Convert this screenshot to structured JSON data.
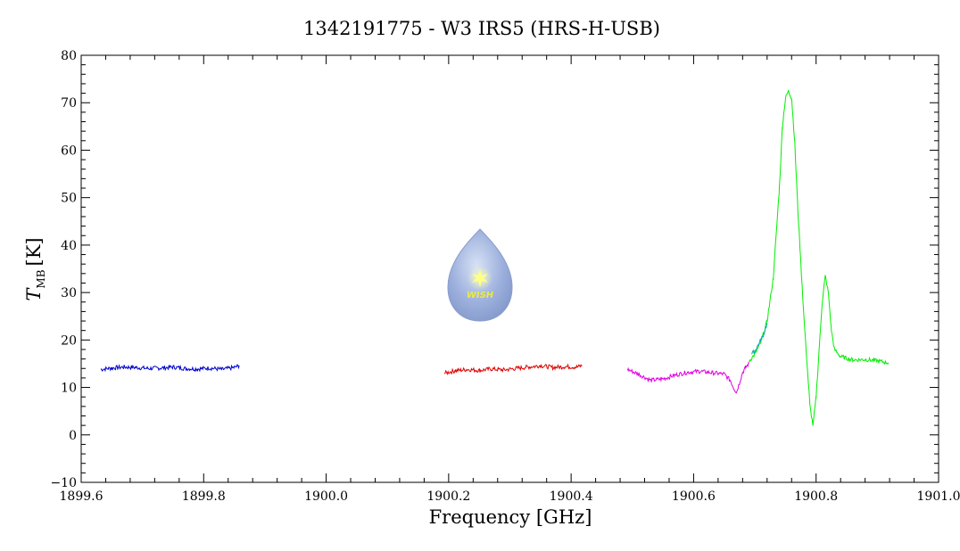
{
  "chart_data": {
    "type": "line",
    "title": "1342191775 - W3 IRS5 (HRS-H-USB)",
    "xlabel": "Frequency [GHz]",
    "ylabel_main": "T",
    "ylabel_sub": "MB",
    "ylabel_unit": "[K]",
    "xlim": [
      1899.6,
      1901.0
    ],
    "ylim": [
      -10,
      80
    ],
    "x_ticks": [
      "1899.6",
      "1899.8",
      "1900.0",
      "1900.2",
      "1900.4",
      "1900.6",
      "1900.8",
      "1901.0"
    ],
    "y_ticks": [
      "−10",
      "0",
      "10",
      "20",
      "30",
      "40",
      "50",
      "60",
      "70",
      "80"
    ],
    "grid": false,
    "logo_text": "WISH",
    "series": [
      {
        "color": "#0000cc",
        "x": [
          1899.632,
          1899.65,
          1899.67,
          1899.69,
          1899.71,
          1899.73,
          1899.75,
          1899.77,
          1899.79,
          1899.81,
          1899.83,
          1899.85,
          1899.858
        ],
        "y": [
          13.8,
          14.1,
          14.3,
          14.2,
          14.0,
          14.1,
          14.3,
          14.0,
          13.9,
          14.1,
          13.8,
          14.2,
          14.6
        ]
      },
      {
        "color": "#dd0000",
        "x": [
          1900.193,
          1900.21,
          1900.23,
          1900.25,
          1900.27,
          1900.29,
          1900.31,
          1900.33,
          1900.35,
          1900.37,
          1900.39,
          1900.41,
          1900.418
        ],
        "y": [
          13.0,
          13.5,
          13.8,
          13.6,
          13.9,
          13.7,
          14.0,
          14.3,
          14.6,
          14.2,
          14.4,
          14.3,
          14.6
        ]
      },
      {
        "color": "#e000e0",
        "x": [
          1900.492,
          1900.51,
          1900.53,
          1900.55,
          1900.57,
          1900.59,
          1900.61,
          1900.63,
          1900.65,
          1900.66,
          1900.665,
          1900.67,
          1900.675,
          1900.68,
          1900.685,
          1900.69
        ],
        "y": [
          13.8,
          12.8,
          11.5,
          11.8,
          12.6,
          13.2,
          13.4,
          13.1,
          12.8,
          11.5,
          10.0,
          9.0,
          11.0,
          13.2,
          14.2,
          15.0
        ]
      },
      {
        "color": "#00ee00",
        "x": [
          1900.69,
          1900.7,
          1900.71,
          1900.72,
          1900.73,
          1900.74,
          1900.745,
          1900.75,
          1900.755,
          1900.76,
          1900.765,
          1900.77,
          1900.78,
          1900.79,
          1900.795,
          1900.8,
          1900.805,
          1900.81,
          1900.815,
          1900.82,
          1900.825,
          1900.83,
          1900.84,
          1900.86,
          1900.88,
          1900.9,
          1900.918
        ],
        "y": [
          15.5,
          17.0,
          19.5,
          24.0,
          33.0,
          52.0,
          65.0,
          71.0,
          72.5,
          71.0,
          62.0,
          48.0,
          25.0,
          6.0,
          2.0,
          8.0,
          18.0,
          28.0,
          33.5,
          30.0,
          22.0,
          18.0,
          16.5,
          15.8,
          15.9,
          15.6,
          15.2
        ]
      },
      {
        "color": "#00aaaa",
        "x": [
          1900.695,
          1900.7,
          1900.705,
          1900.71,
          1900.715,
          1900.72
        ],
        "y": [
          17.0,
          17.8,
          18.8,
          20.0,
          21.5,
          23.5
        ]
      }
    ]
  }
}
